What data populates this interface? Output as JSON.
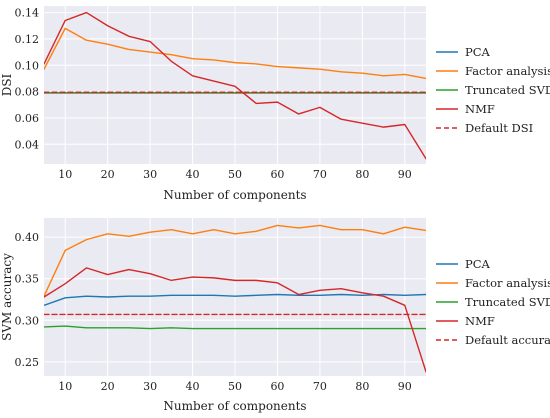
{
  "colors": {
    "background": "#EAEAF2",
    "grid": "#FFFFFF",
    "PCA": "#1F77B4",
    "Factor analysis": "#FF7F0E",
    "Truncated SVD": "#2CA02C",
    "NMF": "#D62728"
  },
  "chart_data": [
    {
      "type": "line",
      "xlabel": "Number of components",
      "ylabel": "DSI",
      "xlim": [
        5,
        95
      ],
      "ylim": [
        0.025,
        0.145
      ],
      "xticks": [
        10,
        20,
        30,
        40,
        50,
        60,
        70,
        80,
        90
      ],
      "yticks": [
        0.04,
        0.06,
        0.08,
        0.1,
        0.12,
        0.14
      ],
      "ytick_labels": [
        "0.04",
        "0.06",
        "0.08",
        "0.10",
        "0.12",
        "0.14"
      ],
      "grid": true,
      "legend_position": "right",
      "x": [
        5,
        10,
        15,
        20,
        25,
        30,
        35,
        40,
        45,
        50,
        55,
        60,
        65,
        70,
        75,
        80,
        85,
        90,
        95
      ],
      "series": [
        {
          "name": "PCA",
          "style": "solid",
          "values": [
            0.079,
            0.079,
            0.079,
            0.079,
            0.079,
            0.079,
            0.079,
            0.079,
            0.079,
            0.079,
            0.079,
            0.079,
            0.079,
            0.079,
            0.079,
            0.079,
            0.079,
            0.079,
            0.079
          ]
        },
        {
          "name": "Factor analysis",
          "style": "solid",
          "values": [
            0.097,
            0.128,
            0.119,
            0.116,
            0.112,
            0.11,
            0.108,
            0.105,
            0.104,
            0.102,
            0.101,
            0.099,
            0.098,
            0.097,
            0.095,
            0.094,
            0.092,
            0.093,
            0.09
          ]
        },
        {
          "name": "Truncated SVD",
          "style": "solid",
          "values": [
            0.079,
            0.079,
            0.079,
            0.079,
            0.079,
            0.079,
            0.079,
            0.079,
            0.079,
            0.079,
            0.079,
            0.079,
            0.079,
            0.079,
            0.079,
            0.079,
            0.079,
            0.079,
            0.079
          ]
        },
        {
          "name": "NMF",
          "style": "solid",
          "values": [
            0.101,
            0.134,
            0.14,
            0.13,
            0.122,
            0.118,
            0.103,
            0.092,
            0.088,
            0.084,
            0.071,
            0.072,
            0.063,
            0.068,
            0.059,
            0.056,
            0.053,
            0.055,
            0.029
          ]
        },
        {
          "name": "Default DSI",
          "style": "dashed",
          "color": "NMF",
          "values": [
            0.0795,
            0.0795,
            0.0795,
            0.0795,
            0.0795,
            0.0795,
            0.0795,
            0.0795,
            0.0795,
            0.0795,
            0.0795,
            0.0795,
            0.0795,
            0.0795,
            0.0795,
            0.0795,
            0.0795,
            0.0795,
            0.0795
          ]
        }
      ]
    },
    {
      "type": "line",
      "xlabel": "Number of components",
      "ylabel": "SVM accuracy",
      "xlim": [
        5,
        95
      ],
      "ylim": [
        0.233,
        0.423
      ],
      "xticks": [
        10,
        20,
        30,
        40,
        50,
        60,
        70,
        80,
        90
      ],
      "yticks": [
        0.25,
        0.3,
        0.35,
        0.4
      ],
      "ytick_labels": [
        "0.25",
        "0.30",
        "0.35",
        "0.40"
      ],
      "grid": true,
      "legend_position": "right",
      "x": [
        5,
        10,
        15,
        20,
        25,
        30,
        35,
        40,
        45,
        50,
        55,
        60,
        65,
        70,
        75,
        80,
        85,
        90,
        95
      ],
      "series": [
        {
          "name": "PCA",
          "style": "solid",
          "values": [
            0.318,
            0.327,
            0.329,
            0.328,
            0.329,
            0.329,
            0.33,
            0.33,
            0.33,
            0.329,
            0.33,
            0.331,
            0.33,
            0.33,
            0.331,
            0.33,
            0.331,
            0.33,
            0.331
          ]
        },
        {
          "name": "Factor analysis",
          "style": "solid",
          "values": [
            0.329,
            0.384,
            0.397,
            0.404,
            0.401,
            0.406,
            0.409,
            0.404,
            0.409,
            0.404,
            0.407,
            0.414,
            0.411,
            0.414,
            0.409,
            0.409,
            0.404,
            0.412,
            0.408
          ]
        },
        {
          "name": "Truncated SVD",
          "style": "solid",
          "values": [
            0.292,
            0.293,
            0.291,
            0.291,
            0.291,
            0.29,
            0.291,
            0.29,
            0.29,
            0.29,
            0.29,
            0.29,
            0.29,
            0.29,
            0.29,
            0.29,
            0.29,
            0.29,
            0.29
          ]
        },
        {
          "name": "NMF",
          "style": "solid",
          "values": [
            0.328,
            0.344,
            0.363,
            0.355,
            0.361,
            0.356,
            0.348,
            0.352,
            0.351,
            0.348,
            0.348,
            0.345,
            0.331,
            0.336,
            0.338,
            0.333,
            0.329,
            0.318,
            0.238
          ]
        },
        {
          "name": "Default accuracy",
          "style": "dashed",
          "color": "NMF",
          "values": [
            0.307,
            0.307,
            0.307,
            0.307,
            0.307,
            0.307,
            0.307,
            0.307,
            0.307,
            0.307,
            0.307,
            0.307,
            0.307,
            0.307,
            0.307,
            0.307,
            0.307,
            0.307,
            0.307
          ]
        }
      ]
    }
  ]
}
